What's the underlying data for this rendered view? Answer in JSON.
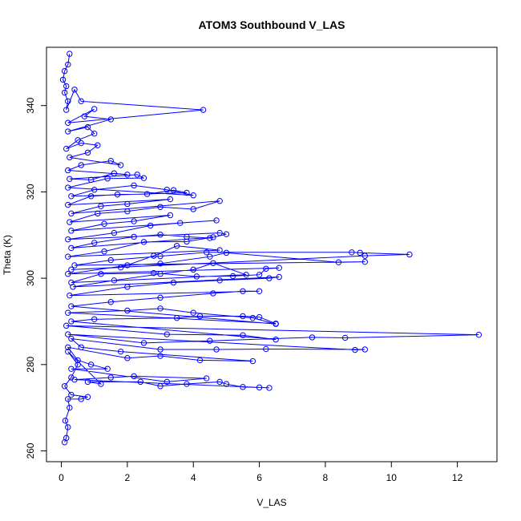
{
  "chart_data": {
    "type": "line",
    "title": "ATOM3 Southbound V_LAS",
    "xlabel": "V_LAS",
    "ylabel": "Theta (K)",
    "xlim": [
      -0.45,
      13.2
    ],
    "ylim": [
      257.5,
      353.5
    ],
    "xticks": [
      0,
      2,
      4,
      6,
      8,
      10,
      12
    ],
    "yticks": [
      260,
      280,
      300,
      320,
      340
    ],
    "grid": false,
    "legend": "none",
    "marker": "open-circle",
    "color": "#0000ff",
    "series": [
      {
        "points": [
          [
            0.1,
            262
          ],
          [
            0.15,
            263
          ],
          [
            0.2,
            265.5
          ],
          [
            0.12,
            267
          ],
          [
            0.25,
            270
          ],
          [
            0.2,
            272
          ],
          [
            0.6,
            272
          ],
          [
            0.8,
            272.5
          ],
          [
            0.3,
            273
          ],
          [
            0.1,
            275
          ],
          [
            0.3,
            277
          ],
          [
            0.5,
            280
          ],
          [
            0.2,
            283
          ],
          [
            1.2,
            275.5
          ],
          [
            0.8,
            276
          ],
          [
            2.4,
            276
          ],
          [
            3.0,
            275
          ],
          [
            3.8,
            275.5
          ],
          [
            4.8,
            276
          ],
          [
            5.0,
            275.5
          ],
          [
            5.5,
            274.8
          ],
          [
            6.0,
            274.7
          ],
          [
            6.3,
            274.6
          ],
          [
            0.4,
            276.5
          ],
          [
            1.5,
            277
          ],
          [
            2.2,
            277.3
          ],
          [
            4.4,
            276.8
          ],
          [
            3.2,
            276
          ],
          [
            0.3,
            279
          ],
          [
            1.4,
            279
          ],
          [
            0.9,
            280
          ],
          [
            0.5,
            281
          ],
          [
            0.2,
            284
          ],
          [
            2.0,
            281.5
          ],
          [
            3.0,
            282
          ],
          [
            4.2,
            281
          ],
          [
            5.8,
            280.8
          ],
          [
            1.8,
            283
          ],
          [
            0.6,
            284
          ],
          [
            0.3,
            286
          ],
          [
            3.0,
            283.5
          ],
          [
            4.7,
            283.5
          ],
          [
            6.2,
            283.6
          ],
          [
            9.2,
            283.5
          ],
          [
            8.9,
            283.4
          ],
          [
            0.2,
            287
          ],
          [
            2.5,
            285
          ],
          [
            4.5,
            285.5
          ],
          [
            7.6,
            286.3
          ],
          [
            8.6,
            286.2
          ],
          [
            12.65,
            286.9
          ],
          [
            0.15,
            289
          ],
          [
            3.2,
            287
          ],
          [
            5.5,
            286.8
          ],
          [
            6.5,
            285.8
          ],
          [
            0.3,
            290
          ],
          [
            1.0,
            290.5
          ],
          [
            3.5,
            290.8
          ],
          [
            4.2,
            291.2
          ],
          [
            5.5,
            291.2
          ],
          [
            6.0,
            291
          ],
          [
            6.5,
            289.5
          ],
          [
            0.2,
            292
          ],
          [
            2.0,
            292.5
          ],
          [
            3.0,
            293
          ],
          [
            4.0,
            292
          ],
          [
            5.8,
            290.8
          ],
          [
            6.5,
            289.4
          ],
          [
            0.3,
            293.5
          ],
          [
            1.5,
            294.5
          ],
          [
            3.0,
            295.5
          ],
          [
            4.6,
            296.5
          ],
          [
            5.5,
            297
          ],
          [
            6.0,
            297
          ],
          [
            0.25,
            296
          ],
          [
            2.0,
            298
          ],
          [
            3.4,
            299
          ],
          [
            4.8,
            299.5
          ],
          [
            6.3,
            300
          ],
          [
            6.6,
            300.3
          ],
          [
            0.35,
            298
          ],
          [
            1.6,
            299.5
          ],
          [
            3.0,
            301
          ],
          [
            4.0,
            302
          ],
          [
            4.6,
            303.5
          ],
          [
            5.6,
            300.8
          ],
          [
            0.3,
            299
          ],
          [
            1.2,
            301
          ],
          [
            2.8,
            301.2
          ],
          [
            4.1,
            300.4
          ],
          [
            5.2,
            300.5
          ],
          [
            6.0,
            300.8
          ],
          [
            6.2,
            302.2
          ],
          [
            6.6,
            302.4
          ],
          [
            0.2,
            301
          ],
          [
            2.0,
            303
          ],
          [
            3.0,
            303.4
          ],
          [
            4.5,
            305
          ],
          [
            5.0,
            305.9
          ],
          [
            8.4,
            303.7
          ],
          [
            9.2,
            303.8
          ],
          [
            0.4,
            303
          ],
          [
            1.5,
            304.2
          ],
          [
            3.0,
            305.1
          ],
          [
            4.4,
            306
          ],
          [
            8.8,
            306
          ],
          [
            9.05,
            305.9
          ],
          [
            10.55,
            305.5
          ],
          [
            9.2,
            305.2
          ],
          [
            0.3,
            302
          ],
          [
            1.8,
            302.5
          ],
          [
            2.8,
            305.2
          ],
          [
            3.5,
            307.5
          ],
          [
            4.8,
            306.5
          ],
          [
            0.2,
            305
          ],
          [
            1.3,
            306.2
          ],
          [
            2.5,
            308.4
          ],
          [
            3.8,
            308.5
          ],
          [
            4.6,
            309.5
          ],
          [
            0.3,
            307
          ],
          [
            1.0,
            308.2
          ],
          [
            2.2,
            309.6
          ],
          [
            3.0,
            310.1
          ],
          [
            3.8,
            309.6
          ],
          [
            4.5,
            309.3
          ],
          [
            5.0,
            310.2
          ],
          [
            4.8,
            310.5
          ],
          [
            0.2,
            309
          ],
          [
            1.6,
            310.5
          ],
          [
            2.7,
            312.2
          ],
          [
            3.6,
            312.8
          ],
          [
            4.7,
            313.4
          ],
          [
            0.3,
            311
          ],
          [
            1.3,
            312.6
          ],
          [
            2.2,
            313.2
          ],
          [
            3.3,
            314.6
          ],
          [
            0.25,
            313
          ],
          [
            1.1,
            315
          ],
          [
            2.0,
            315.5
          ],
          [
            3.0,
            316.5
          ],
          [
            4.0,
            316
          ],
          [
            4.8,
            317.9
          ],
          [
            0.3,
            315
          ],
          [
            1.2,
            316.7
          ],
          [
            2.0,
            317.2
          ],
          [
            3.3,
            318.3
          ],
          [
            0.2,
            317
          ],
          [
            0.9,
            319
          ],
          [
            1.7,
            319.4
          ],
          [
            2.6,
            319.5
          ],
          [
            3.4,
            320.4
          ],
          [
            3.8,
            319.8
          ],
          [
            0.3,
            319
          ],
          [
            1.0,
            320.5
          ],
          [
            2.2,
            321.5
          ],
          [
            3.2,
            320.5
          ],
          [
            4.0,
            319.2
          ],
          [
            0.2,
            321
          ],
          [
            1.4,
            323.1
          ],
          [
            2.5,
            323.2
          ],
          [
            2.3,
            324
          ],
          [
            0.25,
            323
          ],
          [
            0.9,
            322.8
          ],
          [
            1.6,
            324.3
          ],
          [
            2.0,
            324
          ],
          [
            0.2,
            325
          ],
          [
            0.6,
            326.2
          ],
          [
            1.5,
            327.2
          ],
          [
            1.8,
            326.2
          ],
          [
            0.25,
            328
          ],
          [
            0.8,
            329.1
          ],
          [
            1.1,
            330.8
          ],
          [
            0.6,
            331.3
          ],
          [
            0.15,
            330
          ],
          [
            0.5,
            332
          ],
          [
            1.0,
            333.5
          ],
          [
            0.8,
            335
          ],
          [
            0.2,
            334
          ],
          [
            1.5,
            336.8
          ],
          [
            0.7,
            337.5
          ],
          [
            1.0,
            339.2
          ],
          [
            0.2,
            336
          ],
          [
            4.3,
            339
          ],
          [
            0.6,
            341
          ],
          [
            0.4,
            343.7
          ],
          [
            0.15,
            339
          ],
          [
            0.2,
            341
          ],
          [
            0.1,
            343
          ],
          [
            0.15,
            344.5
          ],
          [
            0.05,
            346
          ],
          [
            0.1,
            348
          ],
          [
            0.2,
            349.5
          ],
          [
            0.25,
            352
          ]
        ]
      }
    ]
  }
}
